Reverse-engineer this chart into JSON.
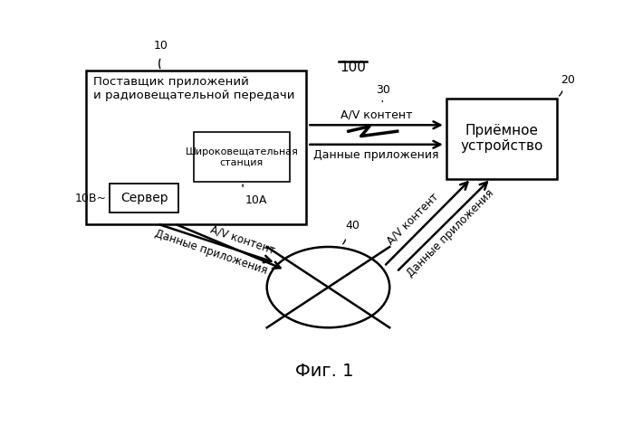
{
  "title": "Фиг. 1",
  "label_100": "100",
  "label_10": "10",
  "label_20": "20",
  "label_30": "30",
  "label_40": "40",
  "label_10A": "10A",
  "label_10B": "10B~",
  "box_main_text": "Поставщик приложений\nи радиовещательной передачи",
  "box_station_text": "Широковещательная\nстанция",
  "box_server_text": "Сервер",
  "box_receiver_text": "Приёмное\nустройство",
  "arrow_av_content": "А/V контент",
  "arrow_data_app": "Данные приложения",
  "arrow_av_content_diag": "А/V контент",
  "arrow_data_app_diag_left": "Данные приложения",
  "arrow_av_content_diag_right": "А/V контент",
  "arrow_data_app_diag_right": "Данные приложения",
  "bg_color": "#ffffff",
  "fg_color": "#000000"
}
